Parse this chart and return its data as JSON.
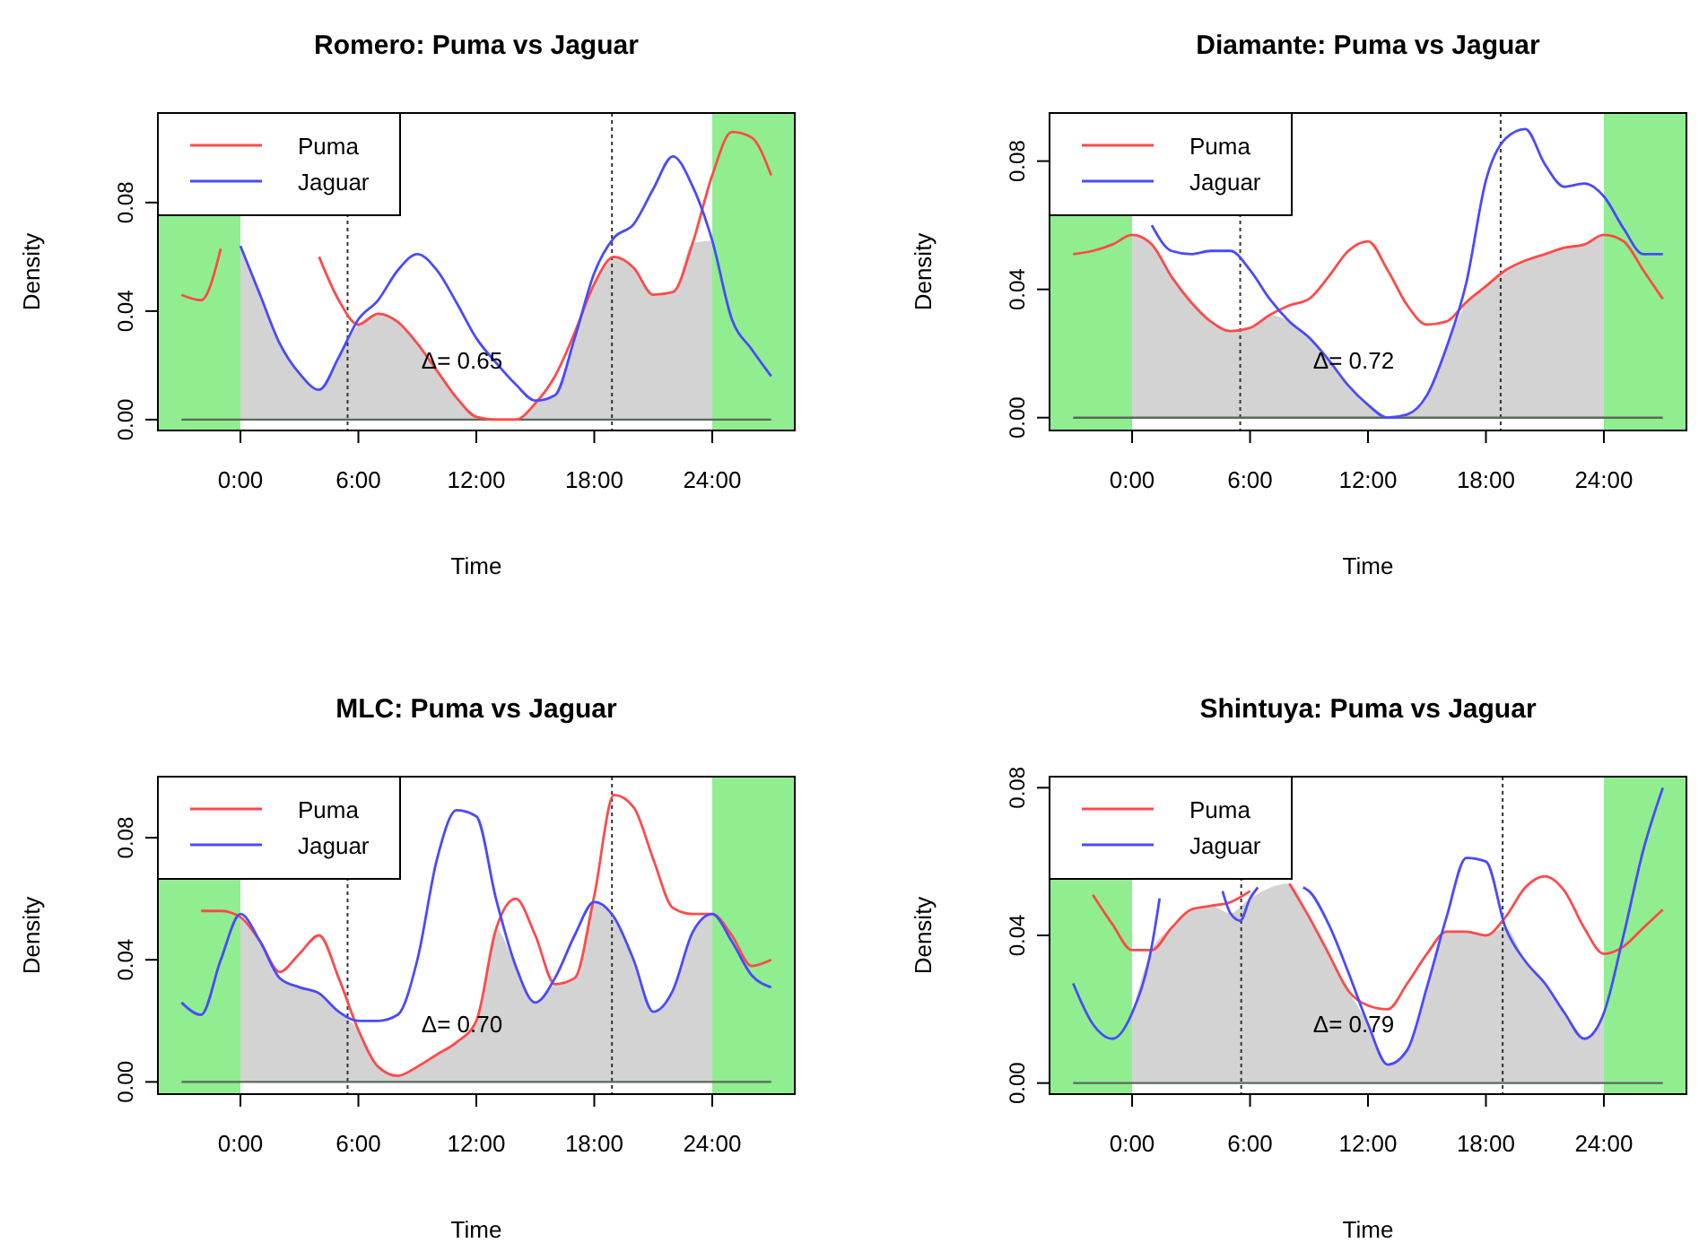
{
  "chart_data": [
    {
      "type": "line",
      "title": "Romero: Puma vs Jaguar",
      "xlabel": "Time",
      "ylabel": "Density",
      "legend": "top left",
      "x": [
        -3,
        -2,
        -1,
        0,
        1,
        2,
        3,
        4,
        5,
        6,
        7,
        8,
        9,
        10,
        11,
        12,
        13,
        14,
        15,
        16,
        17,
        18,
        19,
        20,
        21,
        22,
        23,
        24,
        25,
        26,
        27
      ],
      "xlim": [
        -4.2,
        28.2
      ],
      "ylim": [
        -0.004,
        0.113
      ],
      "xticks": [
        {
          "value": 0,
          "label": "0:00"
        },
        {
          "value": 6,
          "label": "6:00"
        },
        {
          "value": 12,
          "label": "12:00"
        },
        {
          "value": 18,
          "label": "18:00"
        },
        {
          "value": 24,
          "label": "24:00"
        }
      ],
      "yticks": [
        {
          "value": 0,
          "label": "0.00"
        },
        {
          "value": 0.04,
          "label": "0.04"
        },
        {
          "value": 0.08,
          "label": "0.08"
        }
      ],
      "bands": [
        {
          "axis": "x",
          "from": -4.2,
          "to": 0,
          "color": "#90ee90"
        },
        {
          "axis": "x",
          "from": 24,
          "to": 28.2,
          "color": "#90ee90"
        }
      ],
      "ref_lines": [
        {
          "axis": "x",
          "value": 5.45,
          "line_style": "dotted",
          "color": "#333333"
        },
        {
          "axis": "x",
          "value": 18.9,
          "line_style": "dotted",
          "color": "#333333"
        },
        {
          "axis": "y",
          "value": 0,
          "line_style": "solid",
          "color": "#5a6a5a"
        }
      ],
      "series": [
        {
          "type": "area",
          "color": "#d3d3d3",
          "x": [
            0,
            1,
            2,
            3,
            4,
            5,
            6,
            7,
            8,
            9,
            10,
            11,
            12,
            13,
            14,
            15,
            16,
            17,
            18,
            19,
            20,
            21,
            22,
            23,
            24
          ],
          "values": [
            0.064,
            0.046,
            0.028,
            0.017,
            0.011,
            0.023,
            0.035,
            0.039,
            0.036,
            0.028,
            0.018,
            0.008,
            0.001,
            0,
            0,
            0.006,
            0.009,
            0.03,
            0.05,
            0.06,
            0.056,
            0.046,
            0.047,
            0.065,
            0.066
          ]
        },
        {
          "name": "Puma",
          "color": "#ff4a4a",
          "values": [
            0.046,
            0.044,
            0.063,
            null,
            null,
            null,
            null,
            0.06,
            0.044,
            0.035,
            0.039,
            0.036,
            0.028,
            0.018,
            0.008,
            0.001,
            0,
            0,
            0.006,
            0.016,
            0.032,
            0.05,
            0.06,
            0.056,
            0.046,
            0.047,
            0.065,
            0.09,
            0.106,
            0.104,
            0.09
          ]
        },
        {
          "name": "Jaguar",
          "color": "#4a4aff",
          "values": [
            null,
            null,
            null,
            0.064,
            0.046,
            0.028,
            0.017,
            0.011,
            0.023,
            0.037,
            0.044,
            0.055,
            0.061,
            0.055,
            0.043,
            0.03,
            0.021,
            0.013,
            0.007,
            0.009,
            0.03,
            0.054,
            0.067,
            0.072,
            0.085,
            0.097,
            0.086,
            0.066,
            0.037,
            0.026,
            0.016
          ]
        }
      ],
      "annotations": [
        "Δ= 0.65"
      ]
    },
    {
      "type": "line",
      "title": "Diamante: Puma vs Jaguar",
      "xlabel": "Time",
      "ylabel": "Density",
      "legend": "top left",
      "x": [
        -3,
        -2,
        -1,
        0,
        1,
        2,
        3,
        4,
        5,
        6,
        7,
        8,
        9,
        10,
        11,
        12,
        13,
        14,
        15,
        16,
        17,
        18,
        19,
        20,
        21,
        22,
        23,
        24,
        25,
        26,
        27
      ],
      "xlim": [
        -4.2,
        28.2
      ],
      "ylim": [
        -0.004,
        0.095
      ],
      "xticks": [
        {
          "value": 0,
          "label": "0:00"
        },
        {
          "value": 6,
          "label": "6:00"
        },
        {
          "value": 12,
          "label": "12:00"
        },
        {
          "value": 18,
          "label": "18:00"
        },
        {
          "value": 24,
          "label": "24:00"
        }
      ],
      "yticks": [
        {
          "value": 0,
          "label": "0.00"
        },
        {
          "value": 0.04,
          "label": "0.04"
        },
        {
          "value": 0.08,
          "label": "0.08"
        }
      ],
      "bands": [
        {
          "axis": "x",
          "from": -4.2,
          "to": 0,
          "color": "#90ee90"
        },
        {
          "axis": "x",
          "from": 24,
          "to": 28.2,
          "color": "#90ee90"
        }
      ],
      "ref_lines": [
        {
          "axis": "x",
          "value": 5.5,
          "line_style": "dotted",
          "color": "#333333"
        },
        {
          "axis": "x",
          "value": 18.75,
          "line_style": "dotted",
          "color": "#333333"
        },
        {
          "axis": "y",
          "value": 0,
          "line_style": "solid",
          "color": "#5a6a5a"
        }
      ],
      "series": [
        {
          "type": "area",
          "color": "#d3d3d3",
          "x": [
            0,
            1,
            2,
            3,
            4,
            5,
            6,
            7,
            8,
            9,
            10,
            11,
            12,
            13,
            14,
            15,
            16,
            17,
            18,
            19,
            20,
            21,
            22,
            23,
            24
          ],
          "values": [
            0.057,
            0.054,
            0.044,
            0.036,
            0.03,
            0.027,
            0.028,
            0.032,
            0.03,
            0.025,
            0.018,
            0.01,
            0.004,
            0,
            0.001,
            0.007,
            0.022,
            0.036,
            0.041,
            0.046,
            0.049,
            0.051,
            0.053,
            0.054,
            0.057
          ]
        },
        {
          "name": "Puma",
          "color": "#ff4a4a",
          "values": [
            0.051,
            0.052,
            0.054,
            0.057,
            0.054,
            0.044,
            0.036,
            0.03,
            0.027,
            0.028,
            0.032,
            0.035,
            0.037,
            0.044,
            0.052,
            0.055,
            0.046,
            0.035,
            0.029,
            0.03,
            0.036,
            0.041,
            0.046,
            0.049,
            0.051,
            0.053,
            0.054,
            0.057,
            0.055,
            0.046,
            0.037
          ]
        },
        {
          "name": "Jaguar",
          "color": "#4a4aff",
          "values": [
            null,
            null,
            null,
            null,
            0.06,
            0.052,
            0.051,
            0.052,
            0.052,
            0.046,
            0.037,
            0.03,
            0.025,
            0.018,
            0.01,
            0.004,
            0,
            0.001,
            0.007,
            0.022,
            0.042,
            0.074,
            0.087,
            0.09,
            0.079,
            0.072,
            0.073,
            0.069,
            0.059,
            0.051,
            0.051
          ]
        }
      ],
      "annotations": [
        "Δ= 0.72"
      ]
    },
    {
      "type": "line",
      "title": "MLC: Puma vs Jaguar",
      "xlabel": "Time",
      "ylabel": "Density",
      "legend": "top left",
      "x": [
        -3,
        -2,
        -1,
        0,
        1,
        2,
        3,
        4,
        5,
        6,
        7,
        8,
        9,
        10,
        11,
        12,
        13,
        14,
        15,
        16,
        17,
        18,
        19,
        20,
        21,
        22,
        23,
        24,
        25,
        26,
        27
      ],
      "xlim": [
        -4.2,
        28.2
      ],
      "ylim": [
        -0.004,
        0.1
      ],
      "xticks": [
        {
          "value": 0,
          "label": "0:00"
        },
        {
          "value": 6,
          "label": "6:00"
        },
        {
          "value": 12,
          "label": "12:00"
        },
        {
          "value": 18,
          "label": "18:00"
        },
        {
          "value": 24,
          "label": "24:00"
        }
      ],
      "yticks": [
        {
          "value": 0,
          "label": "0.00"
        },
        {
          "value": 0.04,
          "label": "0.04"
        },
        {
          "value": 0.08,
          "label": "0.08"
        }
      ],
      "bands": [
        {
          "axis": "x",
          "from": -4.2,
          "to": 0,
          "color": "#90ee90"
        },
        {
          "axis": "x",
          "from": 24,
          "to": 28.2,
          "color": "#90ee90"
        }
      ],
      "ref_lines": [
        {
          "axis": "x",
          "value": 5.45,
          "line_style": "dotted",
          "color": "#333333"
        },
        {
          "axis": "x",
          "value": 18.9,
          "line_style": "dotted",
          "color": "#333333"
        },
        {
          "axis": "y",
          "value": 0,
          "line_style": "solid",
          "color": "#5a6a5a"
        }
      ],
      "series": [
        {
          "type": "area",
          "color": "#d3d3d3",
          "x": [
            0,
            1,
            2,
            3,
            4,
            5,
            6,
            7,
            8,
            9,
            10,
            11,
            12,
            13,
            14,
            15,
            16,
            17,
            18,
            19,
            20,
            21,
            22,
            23,
            24
          ],
          "values": [
            0.054,
            0.046,
            0.034,
            0.031,
            0.029,
            0.023,
            0.017,
            0.005,
            0.002,
            0.005,
            0.009,
            0.013,
            0.02,
            0.05,
            0.038,
            0.026,
            0.032,
            0.034,
            0.059,
            0.054,
            0.04,
            0.023,
            0.03,
            0.049,
            0.055
          ]
        },
        {
          "name": "Puma",
          "color": "#ff4a4a",
          "values": [
            null,
            0.056,
            0.056,
            0.054,
            0.046,
            0.036,
            0.042,
            0.048,
            0.034,
            0.017,
            0.005,
            0.002,
            0.005,
            0.009,
            0.013,
            0.02,
            0.05,
            0.06,
            0.048,
            0.032,
            0.034,
            0.061,
            0.094,
            0.09,
            0.073,
            0.057,
            0.055,
            0.055,
            0.048,
            0.038,
            0.04
          ]
        },
        {
          "name": "Jaguar",
          "color": "#4a4aff",
          "values": [
            0.026,
            0.022,
            0.04,
            0.055,
            0.046,
            0.034,
            0.031,
            0.029,
            0.023,
            0.02,
            0.02,
            0.022,
            0.04,
            0.073,
            0.089,
            0.087,
            0.06,
            0.038,
            0.026,
            0.034,
            0.048,
            0.059,
            0.054,
            0.04,
            0.023,
            0.03,
            0.049,
            0.055,
            0.046,
            0.035,
            0.031
          ]
        }
      ],
      "annotations": [
        "Δ= 0.70"
      ]
    },
    {
      "type": "line",
      "title": "Shintuya: Puma vs Jaguar",
      "xlabel": "Time",
      "ylabel": "Density",
      "legend": "top left",
      "xlim": [
        -4.2,
        28.2
      ],
      "ylim": [
        -0.003,
        0.083
      ],
      "xticks": [
        {
          "value": 0,
          "label": "0:00"
        },
        {
          "value": 6,
          "label": "6:00"
        },
        {
          "value": 12,
          "label": "12:00"
        },
        {
          "value": 18,
          "label": "18:00"
        },
        {
          "value": 24,
          "label": "24:00"
        }
      ],
      "yticks": [
        {
          "value": 0,
          "label": "0.00"
        },
        {
          "value": 0.04,
          "label": "0.04"
        },
        {
          "value": 0.08,
          "label": "0.08"
        }
      ],
      "bands": [
        {
          "axis": "x",
          "from": -4.2,
          "to": 0,
          "color": "#90ee90"
        },
        {
          "axis": "x",
          "from": 24,
          "to": 28.2,
          "color": "#90ee90"
        }
      ],
      "ref_lines": [
        {
          "axis": "x",
          "value": 5.55,
          "line_style": "dotted",
          "color": "#333333"
        },
        {
          "axis": "x",
          "value": 18.85,
          "line_style": "dotted",
          "color": "#333333"
        },
        {
          "axis": "y",
          "value": 0,
          "line_style": "solid",
          "color": "#5a6a5a"
        }
      ],
      "series": [
        {
          "type": "area",
          "color": "#d3d3d3",
          "x": [
            0,
            1,
            2,
            3,
            4,
            5,
            6,
            7,
            8,
            9,
            10,
            11,
            12,
            13,
            14,
            15,
            16,
            17,
            18,
            19,
            20,
            21,
            22,
            23,
            24
          ],
          "values": [
            0.019,
            0.036,
            0.042,
            0.047,
            0.048,
            0.046,
            0.05,
            null,
            0.054,
            0.045,
            0.035,
            0.025,
            0.016,
            0.005,
            0.009,
            0.026,
            0.041,
            0.041,
            0.04,
            0.042,
            0.033,
            0.027,
            0.019,
            0.012,
            0.019
          ]
        },
        {
          "name": "Puma",
          "color": "#ff4a4a",
          "x": [
            -2,
            -1,
            0,
            1,
            2,
            3,
            4,
            5,
            6,
            7,
            8,
            9,
            10,
            11,
            12,
            13,
            14,
            15,
            16,
            17,
            18,
            19,
            20,
            21,
            22,
            23,
            24,
            25,
            26,
            27
          ],
          "values": [
            0.051,
            0.043,
            0.036,
            0.036,
            0.042,
            0.047,
            0.048,
            0.049,
            0.052,
            null,
            0.054,
            0.045,
            0.035,
            0.025,
            0.021,
            0.02,
            0.027,
            0.035,
            0.041,
            0.041,
            0.04,
            0.045,
            0.053,
            0.056,
            0.052,
            0.042,
            0.035,
            0.037,
            0.042,
            0.047
          ]
        },
        {
          "name": "Jaguar",
          "color": "#4a4aff",
          "x": [
            -3,
            -2,
            -1,
            0,
            1,
            1.4,
            3,
            4.6,
            5,
            5.5,
            6,
            6.4,
            7.5,
            8.7,
            9,
            10,
            11,
            12,
            13,
            14,
            15,
            16,
            17,
            18,
            19,
            20,
            21,
            22,
            23,
            24,
            25,
            26,
            27
          ],
          "values": [
            0.027,
            0.016,
            0.012,
            0.019,
            0.037,
            0.05,
            null,
            0.052,
            0.046,
            0.044,
            0.05,
            0.053,
            null,
            0.053,
            0.052,
            0.043,
            0.03,
            0.016,
            0.005,
            0.009,
            0.026,
            0.045,
            0.061,
            0.06,
            0.042,
            0.033,
            0.027,
            0.019,
            0.012,
            0.019,
            0.04,
            0.063,
            0.08
          ]
        }
      ],
      "annotations": [
        "Δ= 0.79"
      ]
    }
  ]
}
